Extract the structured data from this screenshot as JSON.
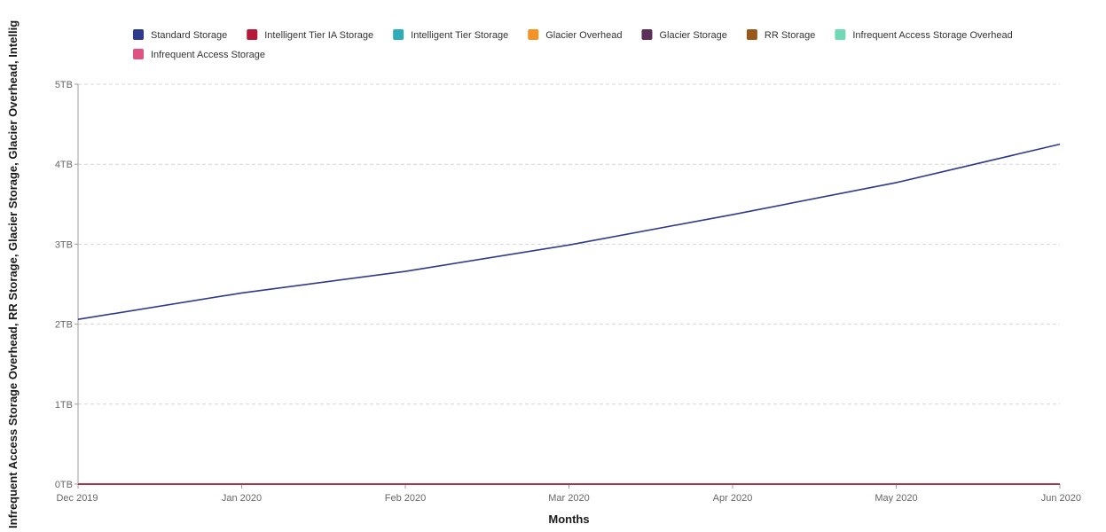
{
  "chart_data": {
    "type": "line",
    "xlabel": "Months",
    "ylabel": "Infrequent Access Storage Overhead, RR Storage, Glacier Storage, Glacier Overhead, Intellig",
    "categories": [
      "Dec 2019",
      "Jan 2020",
      "Feb 2020",
      "Mar 2020",
      "Apr 2020",
      "May 2020",
      "Jun 2020"
    ],
    "y_ticks": [
      "0TB",
      "1TB",
      "2TB",
      "3TB",
      "4TB",
      "5TB"
    ],
    "ylim": [
      0,
      5
    ],
    "y_unit": "TB",
    "grid": true,
    "legend_position": "top",
    "series": [
      {
        "name": "Standard Storage",
        "color": "#2e3a8c",
        "values": [
          2.06,
          2.39,
          2.66,
          2.99,
          3.37,
          3.77,
          4.25
        ]
      },
      {
        "name": "Intelligent Tier IA Storage",
        "color": "#b5193a",
        "values": [
          0,
          0,
          0,
          0,
          0,
          0,
          0
        ]
      },
      {
        "name": "Intelligent Tier Storage",
        "color": "#2eacb8",
        "values": [
          0,
          0,
          0,
          0,
          0,
          0,
          0
        ]
      },
      {
        "name": "Glacier Overhead",
        "color": "#f39325",
        "values": [
          0,
          0,
          0,
          0,
          0,
          0,
          0
        ]
      },
      {
        "name": "Glacier Storage",
        "color": "#5b2f57",
        "values": [
          0,
          0,
          0,
          0,
          0,
          0,
          0
        ]
      },
      {
        "name": "RR Storage",
        "color": "#98581c",
        "values": [
          0,
          0,
          0,
          0,
          0,
          0,
          0
        ]
      },
      {
        "name": "Infrequent Access Storage Overhead",
        "color": "#6ed9b4",
        "values": [
          0,
          0,
          0,
          0,
          0,
          0,
          0
        ]
      },
      {
        "name": "Infrequent Access Storage",
        "color": "#e05282",
        "values": [
          0,
          0,
          0,
          0,
          0,
          0,
          0
        ]
      }
    ]
  }
}
